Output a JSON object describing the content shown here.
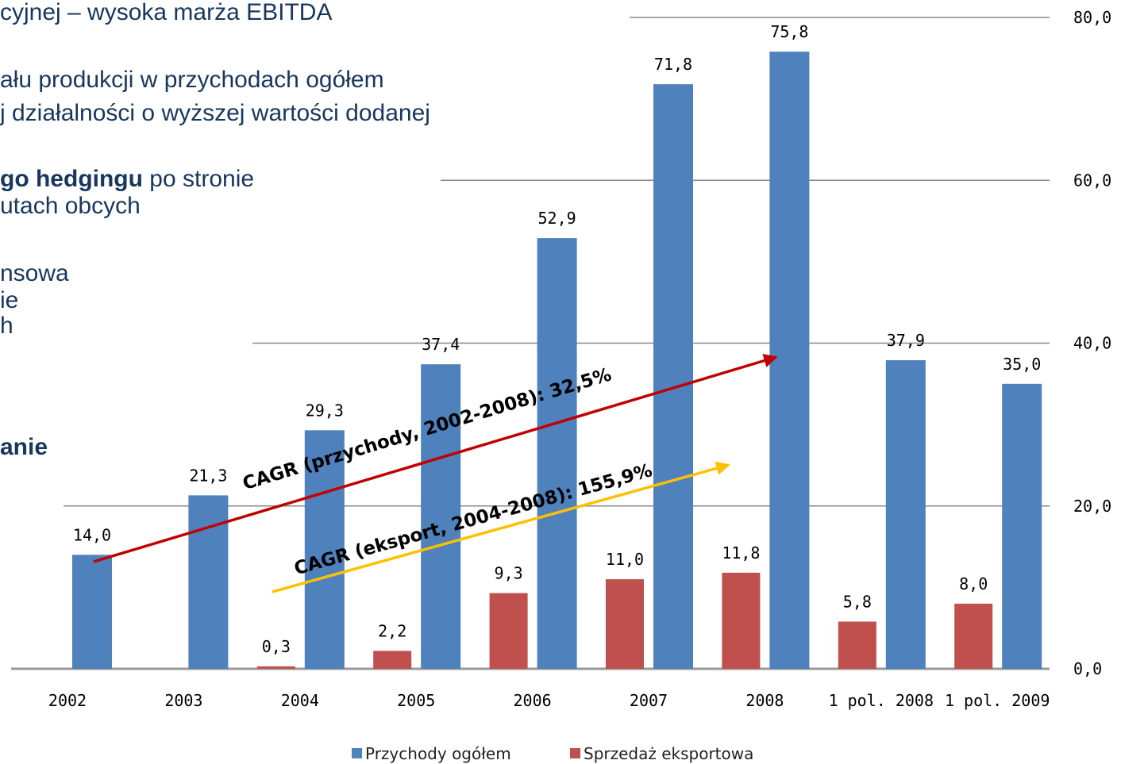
{
  "side_text": [
    {
      "segments": [
        {
          "text": "cyjnej – wysoka marża EBITDA",
          "bold": false
        }
      ]
    },
    {
      "segments": [
        {
          "text": "ału produkcji w przychodach ogółem",
          "bold": false
        }
      ]
    },
    {
      "segments": [
        {
          "text": "j działalności o wyższej wartości dodanej",
          "bold": false
        }
      ]
    },
    {
      "segments": [
        {
          "text": "go hedgingu",
          "bold": true
        },
        {
          "text": " po stronie",
          "bold": false
        }
      ]
    },
    {
      "segments": [
        {
          "text": "utach obcych",
          "bold": false
        }
      ]
    },
    {
      "segments": [
        {
          "text": "nsowa",
          "bold": false
        }
      ]
    },
    {
      "segments": [
        {
          "text": "ie",
          "bold": false
        }
      ]
    },
    {
      "segments": [
        {
          "text": "h",
          "bold": false
        }
      ]
    },
    {
      "segments": [
        {
          "text": "anie",
          "bold": true
        }
      ]
    }
  ],
  "chart_data": {
    "type": "bar",
    "categories": [
      "2002",
      "2003",
      "2004",
      "2005",
      "2006",
      "2007",
      "2008",
      "1 pol. 2008",
      "1 pol. 2009"
    ],
    "series": [
      {
        "name": "Przychody ogółem",
        "color": "#4f81bd",
        "values": [
          14.0,
          21.3,
          29.3,
          37.4,
          52.9,
          71.8,
          75.8,
          37.9,
          35.0
        ],
        "value_labels": [
          "14,0",
          "21,3",
          "29,3",
          "37,4",
          "52,9",
          "71,8",
          "75,8",
          "37,9",
          "35,0"
        ]
      },
      {
        "name": "Sprzedaż eksportowa",
        "color": "#c0504d",
        "values": [
          null,
          null,
          0.3,
          2.2,
          9.3,
          11.0,
          11.8,
          5.8,
          8.0
        ],
        "value_labels": [
          null,
          null,
          "0,3",
          "2,2",
          "9,3",
          "11,0",
          "11,8",
          "5,8",
          "8,0"
        ]
      }
    ],
    "ylim": [
      0,
      80
    ],
    "yticks": [
      {
        "value": 0,
        "label": "0,0"
      },
      {
        "value": 20,
        "label": "20,0"
      },
      {
        "value": 40,
        "label": "40,0"
      },
      {
        "value": 60,
        "label": "60,0"
      },
      {
        "value": 80,
        "label": "80,0"
      }
    ],
    "grid": true,
    "legend": "bottom",
    "annotations": [
      {
        "text": "CAGR (przychody, 2002-2008): 32,5%",
        "color": "#c00000"
      },
      {
        "text": "CAGR (eksport, 2004-2008): 155,9%",
        "color": "#ffc000"
      }
    ]
  }
}
